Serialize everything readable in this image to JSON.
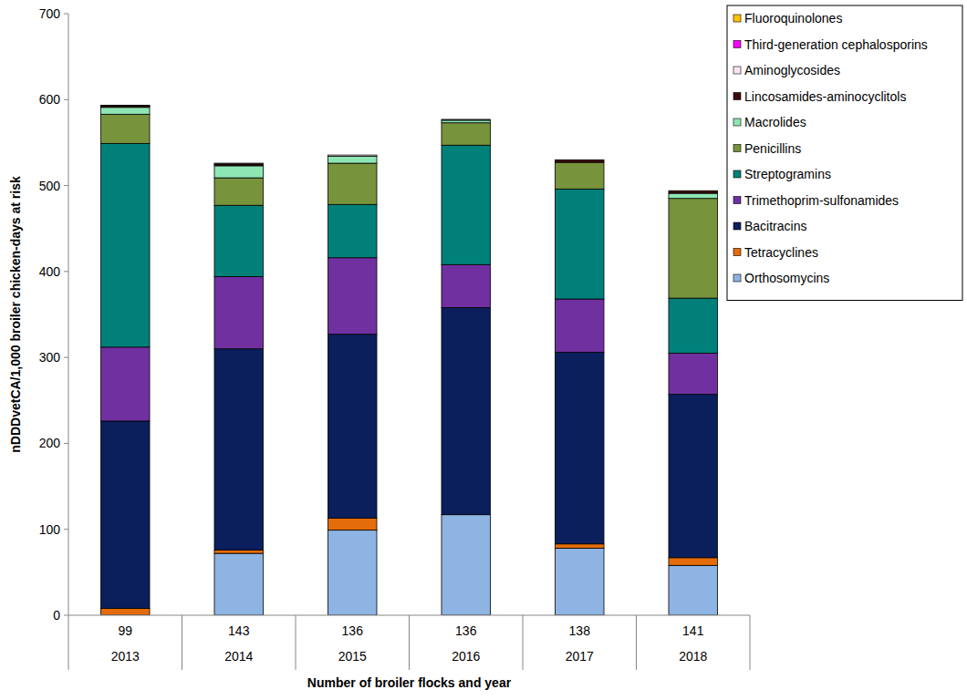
{
  "chart_data": {
    "type": "bar",
    "stacked": true,
    "legend": "top-right",
    "grid": false,
    "y_label": "nDDDvetCA/1,000 broiler chicken-days at risk",
    "x_label": "Number of broiler flocks and year",
    "categories": [
      "2013",
      "2014",
      "2015",
      "2016",
      "2017",
      "2018"
    ],
    "flocks": [
      99,
      143,
      136,
      136,
      138,
      141
    ],
    "ylim": [
      0,
      700
    ],
    "yticks": [
      0,
      100,
      200,
      300,
      400,
      500,
      600,
      700
    ],
    "series": [
      {
        "name": "Orthosomycins",
        "color": "#8eb4e3",
        "values": [
          0,
          72,
          99,
          117,
          78,
          58
        ]
      },
      {
        "name": "Tetracyclines",
        "color": "#e46c0a",
        "values": [
          8,
          4,
          14,
          0,
          5,
          9
        ]
      },
      {
        "name": "Bacitracins",
        "color": "#0a1f5c",
        "values": [
          218,
          234,
          214,
          241,
          223,
          190
        ]
      },
      {
        "name": "Trimethoprim-sulfonamides",
        "color": "#7030a0",
        "values": [
          86,
          84,
          89,
          50,
          62,
          48
        ]
      },
      {
        "name": "Streptogramins",
        "color": "#008079",
        "values": [
          237,
          83,
          62,
          139,
          128,
          64
        ]
      },
      {
        "name": "Penicillins",
        "color": "#77933c",
        "values": [
          34,
          32,
          48,
          26,
          31,
          116
        ]
      },
      {
        "name": "Macrolides",
        "color": "#8ee6b4",
        "values": [
          8,
          14,
          8,
          3,
          0,
          6
        ]
      },
      {
        "name": "Lincosamides-aminocyclitols",
        "color": "#3d0a0a",
        "values": [
          2,
          2,
          0,
          0,
          3,
          3
        ]
      },
      {
        "name": "Aminoglycosides",
        "color": "#fce4f4",
        "values": [
          0.5,
          1,
          1.5,
          1,
          0,
          0
        ]
      },
      {
        "name": "Third-generation cephalosporins",
        "color": "#ff00ff",
        "values": [
          0,
          0,
          0,
          0,
          0,
          0
        ]
      },
      {
        "name": "Fluoroquinolones",
        "color": "#ffc000",
        "values": [
          0,
          0,
          0,
          0,
          0,
          0
        ]
      }
    ]
  }
}
